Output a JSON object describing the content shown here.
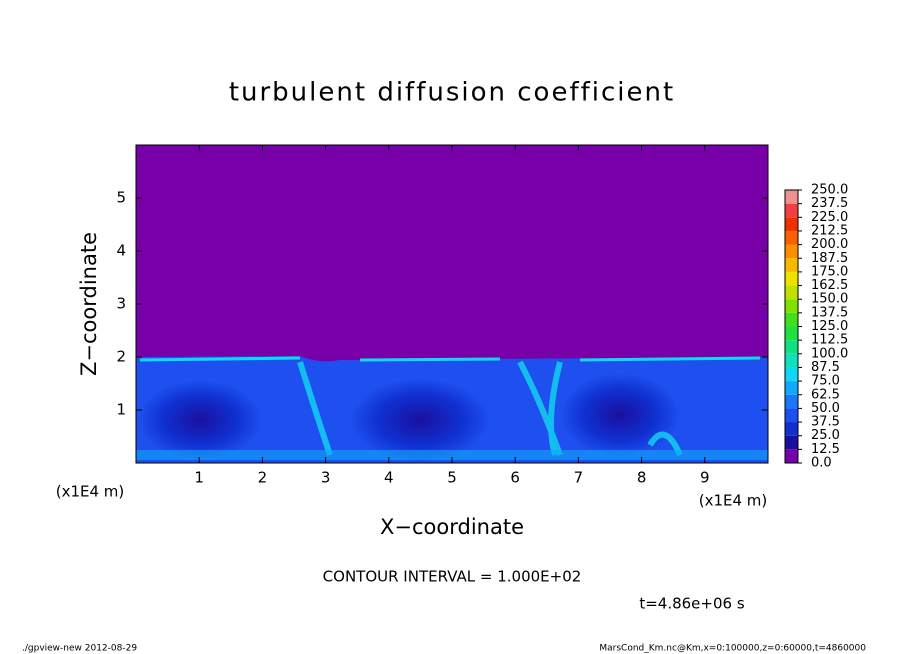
{
  "chart_data": {
    "type": "contour",
    "title": "turbulent diffusion coefficient",
    "xlabel": "X−coordinate",
    "ylabel": "Z−coordinate",
    "xlim": [
      0,
      10
    ],
    "xticks": [
      1,
      2,
      3,
      4,
      5,
      6,
      7,
      8,
      9
    ],
    "ylim": [
      0,
      6
    ],
    "yticks": [
      1,
      2,
      3,
      4,
      5
    ],
    "x_unit_labels": [
      "(x1E4 m)",
      "(x1E4 m)"
    ],
    "colorbar": {
      "levels": [
        {
          "value": 0,
          "label": "0.0"
        },
        {
          "value": 12.5,
          "label": "12.5"
        },
        {
          "value": 25,
          "label": "25.0"
        },
        {
          "value": 37.5,
          "label": "37.5"
        },
        {
          "value": 50,
          "label": "50.0"
        },
        {
          "value": 62.5,
          "label": "62.5"
        },
        {
          "value": 75,
          "label": "75.0"
        },
        {
          "value": 87.5,
          "label": "87.5"
        },
        {
          "value": 100,
          "label": "100.0"
        },
        {
          "value": 112.5,
          "label": "112.5"
        },
        {
          "value": 125,
          "label": "125.0"
        },
        {
          "value": 137.5,
          "label": "137.5"
        },
        {
          "value": 150,
          "label": "150.0"
        },
        {
          "value": 162.5,
          "label": "162.5"
        },
        {
          "value": 175,
          "label": "175.0"
        },
        {
          "value": 187.5,
          "label": "187.5"
        },
        {
          "value": 200,
          "label": "200.0"
        },
        {
          "value": 212.5,
          "label": "212.5"
        },
        {
          "value": 225,
          "label": "225.0"
        },
        {
          "value": 237.5,
          "label": "237.5"
        },
        {
          "value": 250,
          "label": "250.0"
        }
      ],
      "colors": [
        "#7800a8",
        "#1a10a0",
        "#1030d0",
        "#1e50f0",
        "#1878f8",
        "#10a8f8",
        "#10d8f0",
        "#10e0c0",
        "#10e080",
        "#20e040",
        "#40e020",
        "#80e000",
        "#c0e000",
        "#f0e000",
        "#f8b800",
        "#f89000",
        "#f86000",
        "#f03000",
        "#f04040",
        "#f09090"
      ]
    },
    "contour_interval": "CONTOUR INTERVAL = 1.000E+02",
    "time_label": "t=4.86e+06 s",
    "footer_left": "./gpview-new   2012-08-29",
    "footer_right": "MarsCond_Km.nc@Km,x=0:100000,z=0:60000,t=4860000"
  }
}
